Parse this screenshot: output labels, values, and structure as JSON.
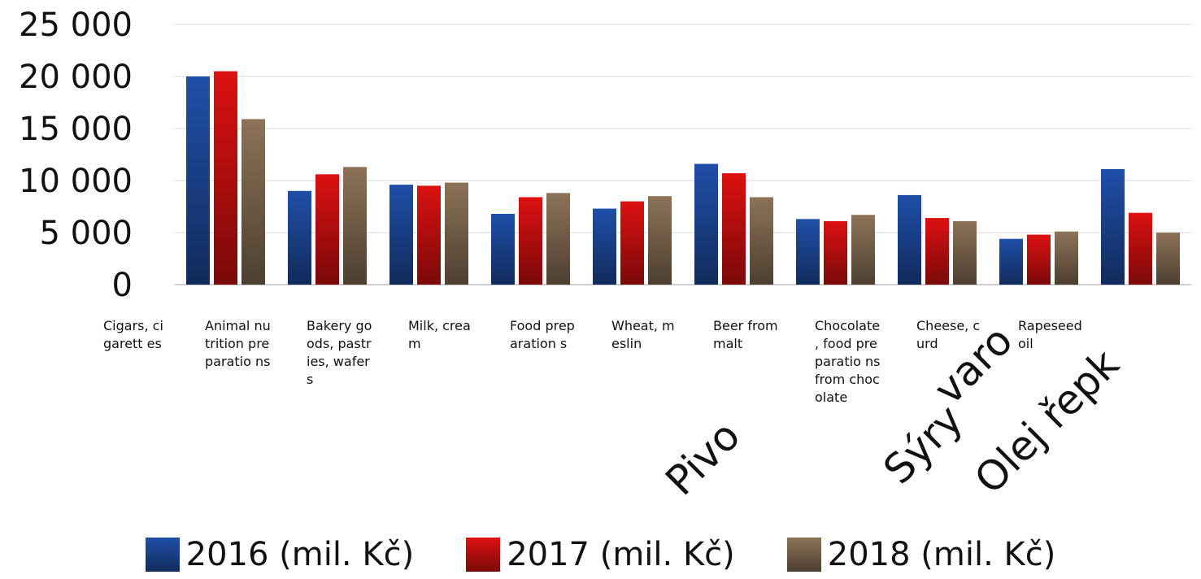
{
  "chart_data": {
    "type": "bar",
    "categories": [
      "Cigars, cigarettes",
      "Animal nutrition preparations",
      "Bakery goods, pastries, wafers",
      "Milk, cream",
      "Food preparations",
      "Wheat, meslin",
      "Beer from malt",
      "Chocolate, food preparations from chocolate",
      "Cheese, curd",
      "Rapeseed oil"
    ],
    "category_labels": [
      "Cigars, cigarett es",
      "Animal nutrition preparatio ns",
      "Bakery goods, pastries, wafers",
      "Milk, cream",
      "Food preparation s",
      "Wheat, meslin",
      "Beer from malt",
      "Chocolate , food preparatio ns from chocolate",
      "Cheese, curd",
      "Rapeseed oil"
    ],
    "series": [
      {
        "name": "2016 (mil. Kč)",
        "color": "#1f4fa8",
        "values": [
          20000,
          9000,
          9600,
          6800,
          7300,
          11600,
          6300,
          8600,
          4400,
          11100
        ]
      },
      {
        "name": "2017 (mil. Kč)",
        "color": "#dd1111",
        "values": [
          20500,
          10600,
          9500,
          8400,
          8000,
          10700,
          6100,
          6400,
          4800,
          6900
        ]
      },
      {
        "name": "2018 (mil. Kč)",
        "color": "#8c7358",
        "values": [
          15900,
          11300,
          9800,
          8800,
          8500,
          8400,
          6700,
          6100,
          5100,
          5000
        ]
      }
    ],
    "yticks": [
      "0",
      "5 000",
      "10 000",
      "15 000",
      "20 000",
      "25 000"
    ],
    "ylim": [
      0,
      25000
    ],
    "grid": true,
    "legend": "bottom",
    "title": "",
    "xlabel": "",
    "ylabel": ""
  },
  "overlay_text": [
    "Pivo",
    "Sýry",
    "varo",
    "Olej řepk"
  ]
}
